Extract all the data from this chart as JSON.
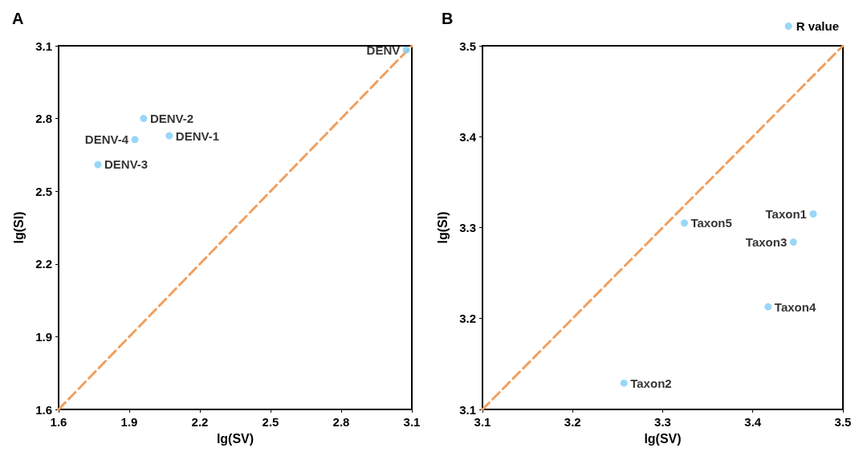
{
  "chart_data": [
    {
      "type": "scatter",
      "title": "A",
      "xlabel": "lg(SV)",
      "ylabel": "lg(SI)",
      "xlim": [
        1.6,
        3.1
      ],
      "ylim": [
        1.6,
        3.1
      ],
      "xticks": [
        1.6,
        1.9,
        2.2,
        2.5,
        2.8,
        3.1
      ],
      "yticks": [
        1.6,
        1.9,
        2.2,
        2.5,
        2.8,
        3.1
      ],
      "grid": false,
      "legend": false,
      "marker": "circle",
      "series": [
        {
          "color": "#80cdf5",
          "x": [
            3.077,
            1.961,
            2.07,
            1.924,
            1.767
          ],
          "values": [
            3.083,
            2.8,
            2.729,
            2.713,
            2.61
          ]
        },
        {
          "type": "line",
          "color": "#f0a060",
          "line_style": "dashed",
          "marker": "none",
          "x": [
            1.6,
            3.1
          ],
          "values": [
            1.6,
            3.1
          ]
        }
      ],
      "annotations": [
        {
          "text": "DENV",
          "x": 3.077,
          "y": 3.083
        },
        {
          "text": "DENV-2",
          "x": 1.961,
          "y": 2.8
        },
        {
          "text": "DENV-1",
          "x": 2.07,
          "y": 2.729
        },
        {
          "text": "DENV-4",
          "x": 1.924,
          "y": 2.713
        },
        {
          "text": "DENV-3",
          "x": 1.767,
          "y": 2.61
        }
      ]
    },
    {
      "type": "scatter",
      "title": "B",
      "xlabel": "lg(SV)",
      "ylabel": "lg(SI)",
      "xlim": [
        3.1,
        3.5
      ],
      "ylim": [
        3.1,
        3.5
      ],
      "xticks": [
        3.1,
        3.2,
        3.3,
        3.4,
        3.5
      ],
      "yticks": [
        3.1,
        3.2,
        3.3,
        3.4,
        3.5
      ],
      "grid": false,
      "legend": "top right",
      "marker": "circle",
      "series": [
        {
          "name": "R value",
          "color": "#80cdf5",
          "x": [
            3.467,
            3.324,
            3.445,
            3.417,
            3.257
          ],
          "values": [
            3.315,
            3.305,
            3.284,
            3.213,
            3.129
          ]
        },
        {
          "type": "line",
          "color": "#f0a060",
          "line_style": "dashed",
          "marker": "none",
          "x": [
            3.1,
            3.5
          ],
          "values": [
            3.1,
            3.5
          ]
        }
      ],
      "annotations": [
        {
          "text": "Taxon1",
          "x": 3.467,
          "y": 3.315
        },
        {
          "text": "Taxon5",
          "x": 3.324,
          "y": 3.305
        },
        {
          "text": "Taxon3",
          "x": 3.445,
          "y": 3.284
        },
        {
          "text": "Taxon4",
          "x": 3.417,
          "y": 3.213
        },
        {
          "text": "Taxon2",
          "x": 3.257,
          "y": 3.129
        }
      ]
    }
  ]
}
